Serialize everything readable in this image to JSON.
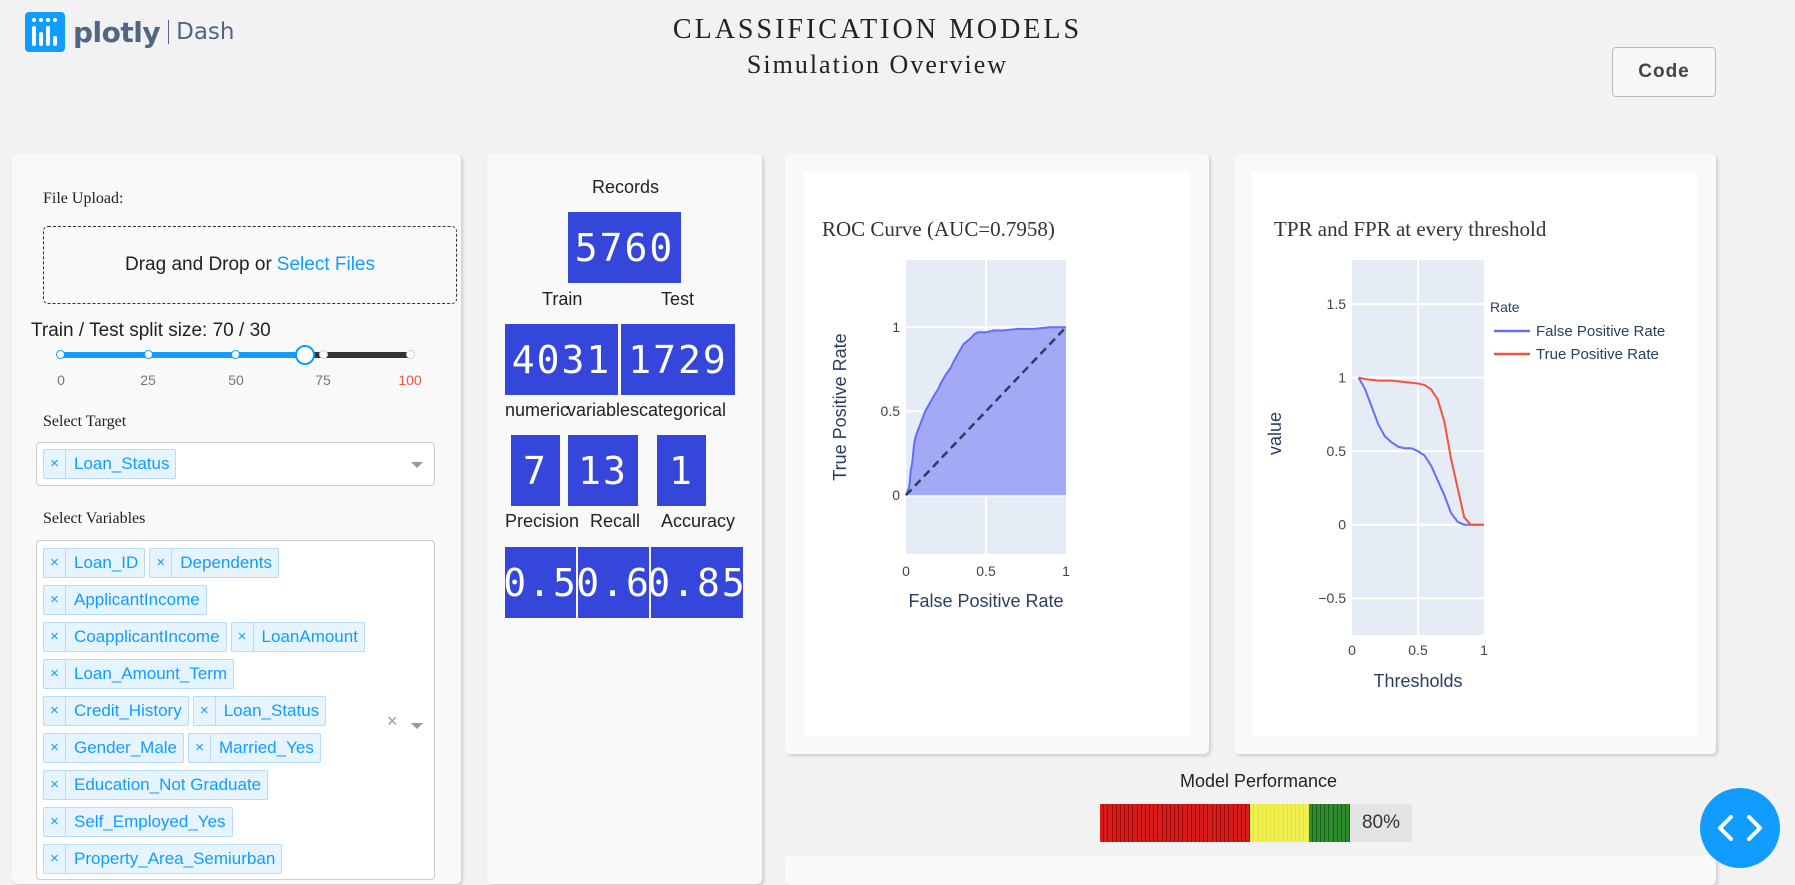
{
  "header": {
    "brand": "plotly",
    "product": "Dash",
    "title": "CLASSIFICATION MODELS",
    "subtitle": "Simulation Overview",
    "code_button": "Code"
  },
  "left_panel": {
    "file_upload_label": "File Upload:",
    "upload_text": "Drag and Drop or",
    "upload_link": "Select Files",
    "split_label": "Train / Test split size: 70 / 30",
    "split_value": 70,
    "slider_ticks": [
      "0",
      "25",
      "50",
      "75",
      "100"
    ],
    "target_label": "Select Target",
    "target_chips": [
      "Loan_Status"
    ],
    "variables_label": "Select Variables",
    "variable_chips": [
      [
        "Loan_ID",
        "Dependents"
      ],
      [
        "ApplicantIncome"
      ],
      [
        "CoapplicantIncome",
        "LoanAmount"
      ],
      [
        "Loan_Amount_Term"
      ],
      [
        "Credit_History",
        "Loan_Status"
      ],
      [
        "Gender_Male",
        "Married_Yes"
      ],
      [
        "Education_Not Graduate"
      ],
      [
        "Self_Employed_Yes"
      ],
      [
        "Property_Area_Semiurban"
      ]
    ]
  },
  "metrics": {
    "records_label": "Records",
    "records": "5760",
    "train_label": "Train",
    "test_label": "Test",
    "train": "4031",
    "test": "1729",
    "numeric_label": "numeric",
    "variables_label": "variables",
    "categorical_label": "categorical",
    "numeric": "7",
    "variables": "13",
    "categorical": "1",
    "precision_label": "Precision",
    "recall_label": "Recall",
    "accuracy_label": "Accuracy",
    "precision": "0.5",
    "recall": "0.6",
    "accuracy": "0.85"
  },
  "chart_data": [
    {
      "type": "area",
      "title": "ROC Curve (AUC=0.7958)",
      "xlabel": "False Positive Rate",
      "ylabel": "True Positive Rate",
      "xlim": [
        0,
        1
      ],
      "ylim": [
        -0.35,
        1.4
      ],
      "x_ticks": [
        "0",
        "0.5",
        "1"
      ],
      "y_ticks": [
        "0",
        "0.5",
        "1"
      ],
      "fill_color": "#a3a9f5",
      "line_color": "#636efa",
      "series": [
        {
          "x": [
            0,
            0.02,
            0.03,
            0.04,
            0.05,
            0.06,
            0.08,
            0.1,
            0.12,
            0.15,
            0.18,
            0.2,
            0.22,
            0.25,
            0.28,
            0.3,
            0.33,
            0.36,
            0.4,
            0.43,
            0.45,
            0.5,
            0.55,
            0.6,
            0.7,
            0.8,
            0.9,
            1
          ],
          "y": [
            0,
            0.05,
            0.15,
            0.2,
            0.3,
            0.35,
            0.4,
            0.45,
            0.5,
            0.55,
            0.6,
            0.63,
            0.67,
            0.72,
            0.76,
            0.8,
            0.85,
            0.9,
            0.93,
            0.96,
            0.97,
            0.97,
            0.98,
            0.98,
            0.99,
            0.99,
            1.0,
            1.0
          ]
        }
      ],
      "diagonal": true
    },
    {
      "type": "line",
      "title": "TPR and FPR at every threshold",
      "xlabel": "Thresholds",
      "ylabel": "value",
      "xlim": [
        0,
        1
      ],
      "ylim": [
        -0.75,
        1.8
      ],
      "x_ticks": [
        "0",
        "0.5",
        "1"
      ],
      "y_ticks": [
        "−0.5",
        "0",
        "0.5",
        "1",
        "1.5"
      ],
      "legend_title": "Rate",
      "legend_position": "top-right",
      "series": [
        {
          "name": "False Positive Rate",
          "color": "#636efa",
          "x": [
            0.05,
            0.1,
            0.15,
            0.2,
            0.25,
            0.3,
            0.35,
            0.4,
            0.45,
            0.5,
            0.55,
            0.6,
            0.65,
            0.7,
            0.75,
            0.8,
            0.85,
            0.9,
            0.95,
            1.0
          ],
          "y": [
            1.0,
            0.92,
            0.8,
            0.68,
            0.6,
            0.56,
            0.53,
            0.52,
            0.52,
            0.5,
            0.47,
            0.4,
            0.3,
            0.2,
            0.08,
            0.02,
            0.0,
            0.0,
            0.0,
            0.0
          ]
        },
        {
          "name": "True Positive Rate",
          "color": "#ef553b",
          "x": [
            0.05,
            0.1,
            0.2,
            0.3,
            0.4,
            0.5,
            0.55,
            0.6,
            0.65,
            0.7,
            0.75,
            0.8,
            0.85,
            0.9,
            0.95,
            1.0
          ],
          "y": [
            1.0,
            0.99,
            0.98,
            0.98,
            0.97,
            0.96,
            0.95,
            0.92,
            0.85,
            0.7,
            0.45,
            0.25,
            0.05,
            0.0,
            0.0,
            0.0
          ]
        }
      ]
    }
  ],
  "performance": {
    "label": "Model Performance",
    "value": 0.8,
    "value_text": "80%"
  }
}
